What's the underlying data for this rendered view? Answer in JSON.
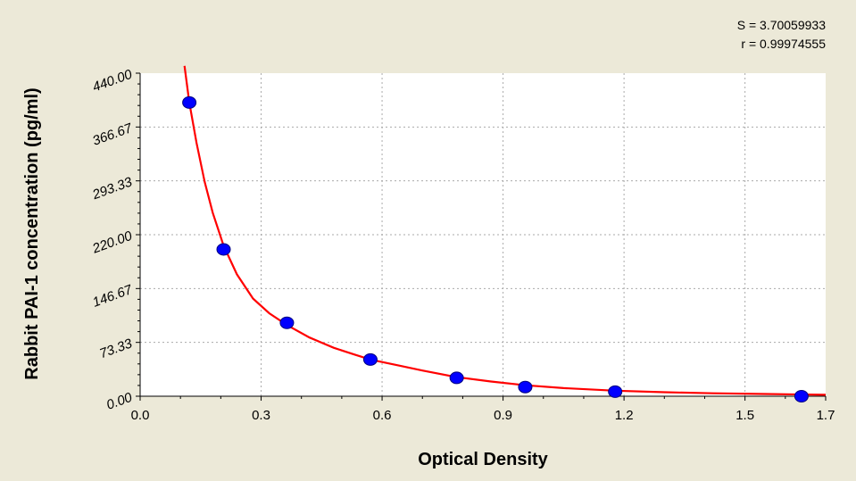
{
  "stats": {
    "s_text": "S = 3.70059933",
    "r_text": "r = 0.99974555"
  },
  "chart_data": {
    "type": "scatter",
    "title": "",
    "xlabel": "Optical Density",
    "ylabel": "Rabbit PAI-1 concentration (pg/ml)",
    "xlim": [
      0,
      1.7
    ],
    "ylim": [
      0,
      440
    ],
    "x_ticks": [
      "0.0",
      "0.3",
      "0.6",
      "0.9",
      "1.2",
      "1.5",
      "1.7"
    ],
    "x_tick_values": [
      0,
      0.3,
      0.6,
      0.9,
      1.2,
      1.5,
      1.7
    ],
    "y_ticks": [
      "0.00",
      "73.33",
      "146.67",
      "220.00",
      "293.33",
      "366.67",
      "440.00"
    ],
    "y_tick_values": [
      0,
      73.33,
      146.67,
      220,
      293.33,
      366.67,
      440
    ],
    "grid": true,
    "series": [
      {
        "type": "scatter",
        "color": "#0000FF",
        "points": [
          {
            "x": 0.122,
            "y": 400
          },
          {
            "x": 0.207,
            "y": 200
          },
          {
            "x": 0.364,
            "y": 100
          },
          {
            "x": 0.571,
            "y": 50
          },
          {
            "x": 0.785,
            "y": 25
          },
          {
            "x": 0.955,
            "y": 12.5
          },
          {
            "x": 1.178,
            "y": 6.25
          },
          {
            "x": 1.64,
            "y": 0
          }
        ]
      },
      {
        "type": "line",
        "color": "#FF0000",
        "points": [
          {
            "x": 0.11,
            "y": 450
          },
          {
            "x": 0.122,
            "y": 400
          },
          {
            "x": 0.14,
            "y": 345
          },
          {
            "x": 0.16,
            "y": 292
          },
          {
            "x": 0.18,
            "y": 250
          },
          {
            "x": 0.207,
            "y": 205
          },
          {
            "x": 0.24,
            "y": 166
          },
          {
            "x": 0.28,
            "y": 133
          },
          {
            "x": 0.32,
            "y": 113
          },
          {
            "x": 0.364,
            "y": 97
          },
          {
            "x": 0.42,
            "y": 80
          },
          {
            "x": 0.48,
            "y": 66
          },
          {
            "x": 0.53,
            "y": 57
          },
          {
            "x": 0.571,
            "y": 50
          },
          {
            "x": 0.64,
            "y": 42
          },
          {
            "x": 0.7,
            "y": 35
          },
          {
            "x": 0.785,
            "y": 26
          },
          {
            "x": 0.87,
            "y": 20
          },
          {
            "x": 0.955,
            "y": 15
          },
          {
            "x": 1.05,
            "y": 11
          },
          {
            "x": 1.178,
            "y": 7.5
          },
          {
            "x": 1.3,
            "y": 5.5
          },
          {
            "x": 1.42,
            "y": 4
          },
          {
            "x": 1.55,
            "y": 3
          },
          {
            "x": 1.7,
            "y": 2
          }
        ]
      }
    ]
  }
}
